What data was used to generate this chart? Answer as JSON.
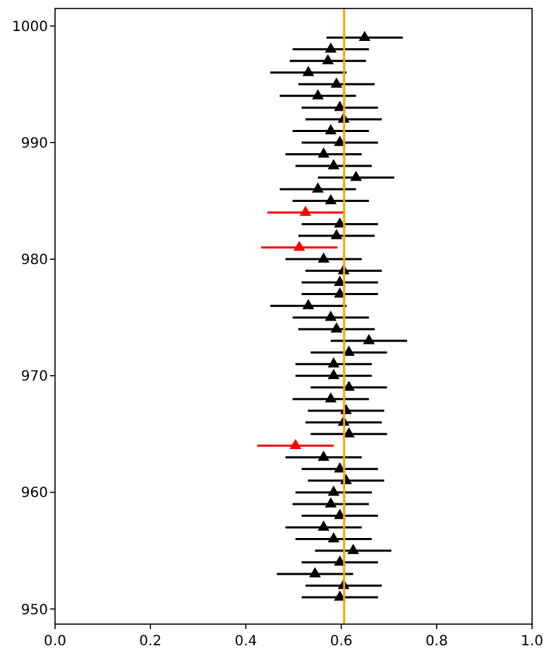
{
  "chart_data": {
    "type": "scatter",
    "marker": "triangle",
    "grid": false,
    "xlim": [
      0,
      1
    ],
    "xticks": [
      {
        "value": 0,
        "label": "0.0"
      },
      {
        "value": 0.2,
        "label": "0.2"
      },
      {
        "value": 0.4,
        "label": "0.4"
      },
      {
        "value": 0.6,
        "label": "0.6"
      },
      {
        "value": 0.8,
        "label": "0.8"
      },
      {
        "value": 1,
        "label": "1.0"
      }
    ],
    "ylim": [
      948.7,
      1001.5
    ],
    "yticks": [
      950,
      960,
      970,
      980,
      990,
      1000
    ],
    "series": [
      {
        "color": "#000000",
        "x": [
          0.649,
          0.578,
          0.572,
          0.531,
          0.59,
          0.551,
          0.597,
          0.605,
          0.578,
          0.597,
          0.563,
          0.584,
          0.631,
          0.551,
          0.578,
          0.597,
          0.59,
          0.563,
          0.605,
          0.597,
          0.597,
          0.531,
          0.578,
          0.59,
          0.658,
          0.616,
          0.584,
          0.584,
          0.616,
          0.578,
          0.61,
          0.605,
          0.616,
          0.563,
          0.597,
          0.61,
          0.584,
          0.578,
          0.597,
          0.563,
          0.584,
          0.625,
          0.597,
          0.545,
          0.605,
          0.597
        ],
        "values": [
          999,
          998,
          997,
          996,
          995,
          994,
          993,
          992,
          991,
          990,
          989,
          988,
          987,
          986,
          985,
          983,
          982,
          980,
          979,
          978,
          977,
          976,
          975,
          974,
          973,
          972,
          971,
          970,
          969,
          968,
          967,
          966,
          965,
          963,
          962,
          961,
          960,
          959,
          958,
          957,
          956,
          955,
          954,
          953,
          952,
          951
        ],
        "xerrors": [
          0.08,
          0.08,
          0.08,
          0.08,
          0.08,
          0.08,
          0.08,
          0.08,
          0.08,
          0.08,
          0.08,
          0.08,
          0.08,
          0.08,
          0.08,
          0.08,
          0.08,
          0.08,
          0.08,
          0.08,
          0.08,
          0.08,
          0.08,
          0.08,
          0.08,
          0.08,
          0.08,
          0.08,
          0.08,
          0.08,
          0.08,
          0.08,
          0.08,
          0.08,
          0.08,
          0.08,
          0.08,
          0.08,
          0.08,
          0.08,
          0.08,
          0.08,
          0.08,
          0.08,
          0.08,
          0.08
        ]
      },
      {
        "color": "#ff0000",
        "x": [
          0.525,
          0.512,
          0.504
        ],
        "values": [
          984,
          981,
          964
        ],
        "xerrors": [
          0.08,
          0.08,
          0.08
        ]
      }
    ],
    "ref_lines": [
      {
        "axis": "x",
        "value": 0.606,
        "color": "#ffa500"
      }
    ]
  }
}
